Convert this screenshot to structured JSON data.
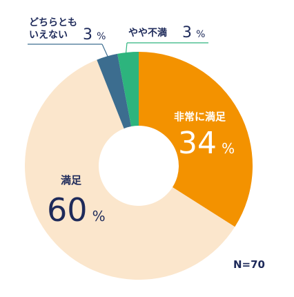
{
  "chart_data": {
    "type": "pie",
    "style": "donut",
    "slices": [
      {
        "label": "非常に満足",
        "value": 34,
        "unit": "%",
        "color": "#f39200"
      },
      {
        "label": "満足",
        "value": 60,
        "unit": "%",
        "color": "#fbe6cc"
      },
      {
        "label": "どちらともいえない",
        "value": 3,
        "unit": "%",
        "color": "#3c6d8f"
      },
      {
        "label": "やや不満",
        "value": 3,
        "unit": "%",
        "color": "#2db47d"
      }
    ],
    "annotation": "N=70"
  },
  "labels": {
    "very_satisfied": {
      "line1": "非常に満足",
      "value": "34",
      "unit": "%"
    },
    "satisfied": {
      "line1": "満足",
      "value": "60",
      "unit": "%"
    },
    "neutral": {
      "line1": "どちらとも",
      "line2": "いえない",
      "value": "3",
      "unit": "%"
    },
    "slightly_dissatisfied": {
      "line1": "やや不満",
      "value": "3",
      "unit": "%"
    }
  },
  "colors": {
    "value_text": "#1e2a5a",
    "inner_label_text": "#ffffff",
    "leader_line": "#3c6d8f",
    "leader_line_alt": "#2db47d",
    "background": "#ffffff"
  }
}
